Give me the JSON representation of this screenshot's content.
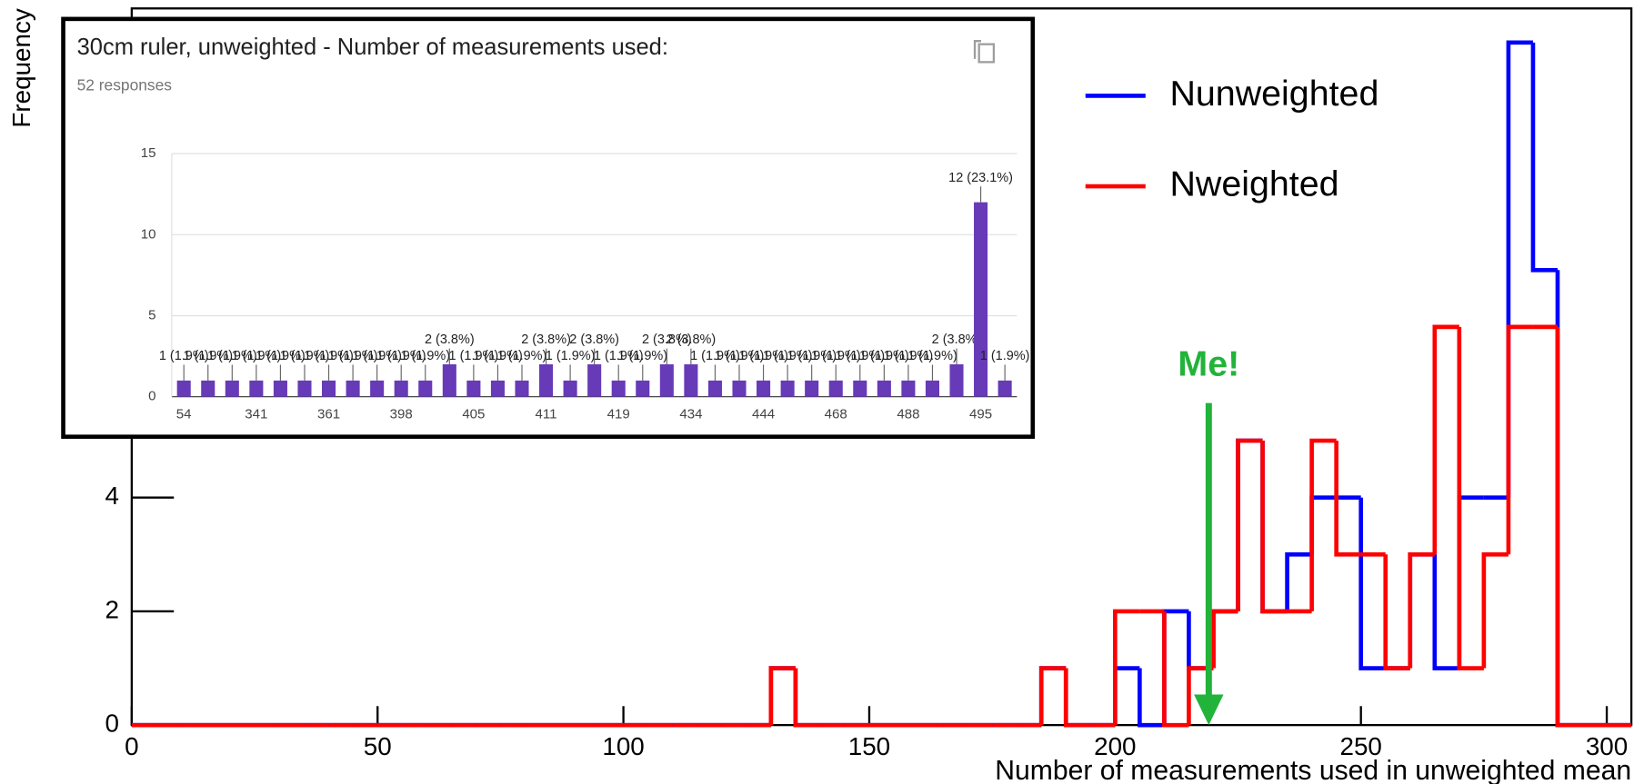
{
  "chart_data": [
    {
      "type": "histogram",
      "y_label": "Frequency",
      "x_label": "Number of measurements used in unweighted mean",
      "annotation": "Me!",
      "bins": [
        0,
        5,
        10,
        15,
        20,
        25,
        30,
        35,
        40,
        45,
        50,
        55,
        60,
        65,
        70,
        75,
        80,
        85,
        90,
        95,
        100,
        105,
        110,
        115,
        120,
        125,
        130,
        135,
        140,
        145,
        150,
        155,
        160,
        165,
        170,
        175,
        180,
        185,
        190,
        195,
        200,
        205,
        210,
        215,
        220,
        225,
        230,
        235,
        240,
        245,
        250,
        255,
        260,
        265,
        270,
        275,
        280,
        285,
        290,
        295,
        300,
        305
      ],
      "series": [
        {
          "name": "Nunweighted",
          "color": "#0000ff",
          "values": [
            0,
            0,
            0,
            0,
            0,
            0,
            0,
            0,
            0,
            0,
            0,
            0,
            0,
            0,
            0,
            0,
            0,
            0,
            0,
            0,
            0,
            0,
            0,
            0,
            0,
            0,
            1,
            0,
            0,
            0,
            0,
            0,
            0,
            0,
            0,
            0,
            0,
            1,
            0,
            0,
            1,
            0,
            2,
            1,
            2,
            5,
            2,
            3,
            4,
            4,
            1,
            1,
            3,
            1,
            4,
            4,
            12,
            8,
            0,
            0,
            0
          ]
        },
        {
          "name": "Nweighted",
          "color": "#ff0000",
          "values": [
            0,
            0,
            0,
            0,
            0,
            0,
            0,
            0,
            0,
            0,
            0,
            0,
            0,
            0,
            0,
            0,
            0,
            0,
            0,
            0,
            0,
            0,
            0,
            0,
            0,
            0,
            1,
            0,
            0,
            0,
            0,
            0,
            0,
            0,
            0,
            0,
            0,
            1,
            0,
            0,
            2,
            2,
            0,
            1,
            2,
            5,
            2,
            2,
            5,
            3,
            3,
            1,
            3,
            7,
            1,
            3,
            7,
            7,
            0,
            0,
            0
          ]
        }
      ],
      "xlim": [
        0,
        305
      ],
      "ylim": [
        0,
        12.6
      ],
      "xticks": [
        0,
        50,
        100,
        150,
        200,
        250,
        300
      ],
      "yticks": [
        0,
        2,
        4
      ],
      "legend": "upper right"
    },
    {
      "type": "bar",
      "title": "30cm ruler, unweighted - Number of measurements used:",
      "subtitle": "52 responses",
      "categories": [
        "54",
        null,
        null,
        "341",
        null,
        null,
        "361",
        null,
        null,
        "398",
        null,
        null,
        "405",
        null,
        null,
        "411",
        null,
        null,
        "419",
        null,
        null,
        "434",
        null,
        null,
        "444",
        null,
        null,
        "468",
        null,
        null,
        "488",
        null,
        null,
        "495",
        null
      ],
      "values": [
        1,
        1,
        1,
        1,
        1,
        1,
        1,
        1,
        1,
        1,
        1,
        2,
        1,
        1,
        1,
        2,
        1,
        2,
        1,
        1,
        2,
        2,
        1,
        1,
        1,
        1,
        1,
        1,
        1,
        1,
        1,
        1,
        2,
        12,
        1
      ],
      "value_labels": [
        "1 (1.9%)",
        "1 (1.9%)",
        "1 (1.9%)",
        "1 (1.9%)",
        "1 (1.9%)",
        "1 (1.9%)",
        "1 (1.9%)",
        "1 (1.9%)",
        "1 (1.9%)",
        "1 (1.9%)",
        "1 (1.9%)",
        "2 (3.8%)",
        "1 (1.9%)",
        "1 (1.9%)",
        "1 (1.9%)",
        "2 (3.8%)",
        "1 (1.9%)",
        "2 (3.8%)",
        "1 (1.9%)",
        "1 (1.9%)",
        "2 (3.8%)",
        "2 (3.8%)",
        "1 (1.9%)",
        "1 (1.9%)",
        "1 (1.9%)",
        "1 (1.9%)",
        "1 (1.9%)",
        "1 (1.9%)",
        "1 (1.9%)",
        "1 (1.9%)",
        "1 (1.9%)",
        "1 (1.9%)",
        "2 (3.8%)",
        "12 (23.1%)",
        "1 (1.9%)"
      ],
      "color": "#673ab7",
      "ylim": [
        0,
        15
      ],
      "yticks": [
        0,
        5,
        10,
        15
      ],
      "grid": true
    }
  ]
}
